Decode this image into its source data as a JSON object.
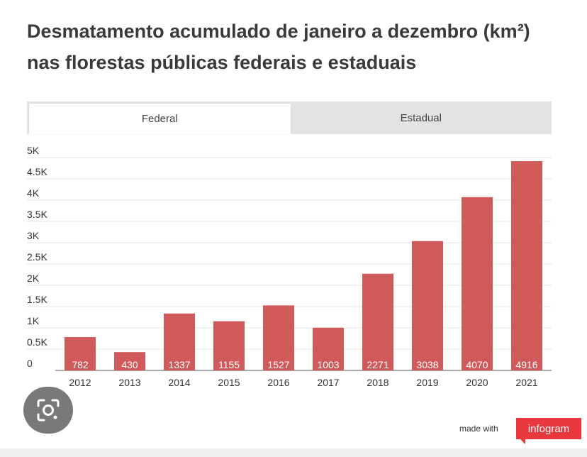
{
  "header": {
    "title_line1": "Desmatamento acumulado de janeiro a dezembro (km²)",
    "title_line2": "nas florestas públicas federais e estaduais"
  },
  "tabs": [
    {
      "label": "Federal",
      "active": true
    },
    {
      "label": "Estadual",
      "active": false
    }
  ],
  "chart_data": {
    "type": "bar",
    "title": "Desmatamento acumulado de janeiro a dezembro (km²) nas florestas públicas federais e estaduais",
    "categories": [
      "2012",
      "2013",
      "2014",
      "2015",
      "2016",
      "2017",
      "2018",
      "2019",
      "2020",
      "2021"
    ],
    "values": [
      782,
      430,
      1337,
      1155,
      1527,
      1003,
      2271,
      3038,
      4070,
      4916
    ],
    "value_labels": [
      "782",
      "430",
      "1337",
      "1155",
      "1527",
      "1003",
      "2271",
      "3038",
      "4070",
      "4916"
    ],
    "y_ticks": [
      {
        "value": 0,
        "label": "0"
      },
      {
        "value": 500,
        "label": "0.5K"
      },
      {
        "value": 1000,
        "label": "1K"
      },
      {
        "value": 1500,
        "label": "1.5K"
      },
      {
        "value": 2000,
        "label": "2K"
      },
      {
        "value": 2500,
        "label": "2.5K"
      },
      {
        "value": 3000,
        "label": "3K"
      },
      {
        "value": 3500,
        "label": "3.5K"
      },
      {
        "value": 4000,
        "label": "4K"
      },
      {
        "value": 4500,
        "label": "4.5K"
      },
      {
        "value": 5000,
        "label": "5K"
      }
    ],
    "ylim": [
      0,
      5000
    ],
    "grid": true,
    "bar_color": "#d05a5a",
    "label_color": "#ffffff"
  },
  "footer": {
    "made_with": "made with",
    "brand": "infogram",
    "brand_color": "#e8383d"
  },
  "overlay": {
    "icon": "lens-search-icon"
  }
}
